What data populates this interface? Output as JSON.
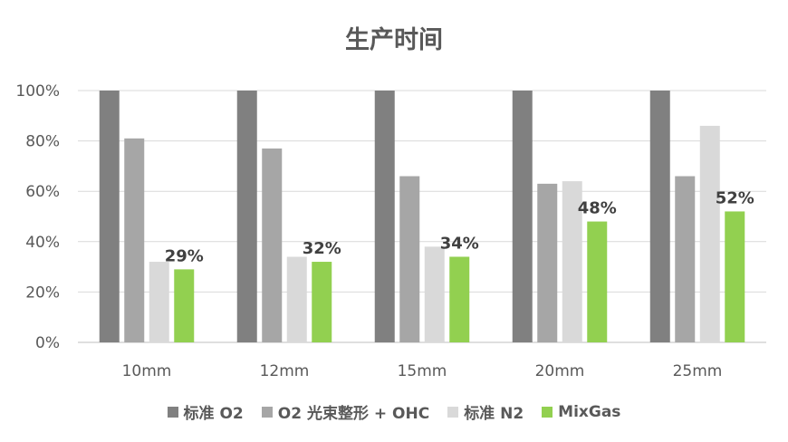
{
  "chart_data": {
    "type": "bar",
    "title": "生产时间",
    "xlabel": "",
    "ylabel": "",
    "categories": [
      "10mm",
      "12mm",
      "15mm",
      "20mm",
      "25mm"
    ],
    "ylim": [
      0,
      100
    ],
    "yticks": [
      "0%",
      "20%",
      "40%",
      "60%",
      "80%",
      "100%"
    ],
    "grid": true,
    "legend_position": "bottom",
    "series": [
      {
        "name": "标准 O2",
        "color": "#808080",
        "values": [
          100,
          100,
          100,
          100,
          100
        ]
      },
      {
        "name": "O2 光束整形 + OHC",
        "color": "#a6a6a6",
        "values": [
          81,
          77,
          66,
          63,
          66
        ]
      },
      {
        "name": "标准 N2",
        "color": "#d9d9d9",
        "values": [
          32,
          34,
          38,
          64,
          86
        ]
      },
      {
        "name": "MixGas",
        "color": "#92d050",
        "values": [
          29,
          32,
          34,
          48,
          52
        ]
      }
    ],
    "data_labels": [
      "29%",
      "32%",
      "34%",
      "48%",
      "52%"
    ],
    "data_label_series": 3
  }
}
